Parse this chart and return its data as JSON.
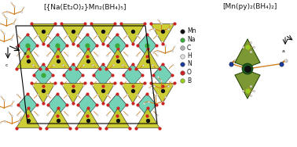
{
  "left_title": "[{Na(Et₂O)₂}Mn₂(BH₄)₅]",
  "right_title": "[Mn(py)₂(BH₄)₂]",
  "background_color": "#ffffff",
  "legend_items": [
    {
      "label": "Mn",
      "color": "#111111"
    },
    {
      "label": "Na",
      "color": "#3aaa3a"
    },
    {
      "label": "C",
      "color": "#b0b0b0"
    },
    {
      "label": "H",
      "color": "#e0e0e0"
    },
    {
      "label": "N",
      "color": "#1a3a9a"
    },
    {
      "label": "O",
      "color": "#cc2222"
    },
    {
      "label": "B",
      "color": "#99cc22"
    }
  ],
  "title_fontsize": 6.5,
  "legend_fontsize": 5.5,
  "teal_color": "#55c8a8",
  "yellow_color": "#c8c820",
  "orange_color": "#d08020",
  "red_color": "#cc2222",
  "black_color": "#111111",
  "olive_color": "#6a8a18",
  "blue_color": "#1a3a9a",
  "grey_color": "#b8b8b8",
  "white_color": "#e8e8e8"
}
